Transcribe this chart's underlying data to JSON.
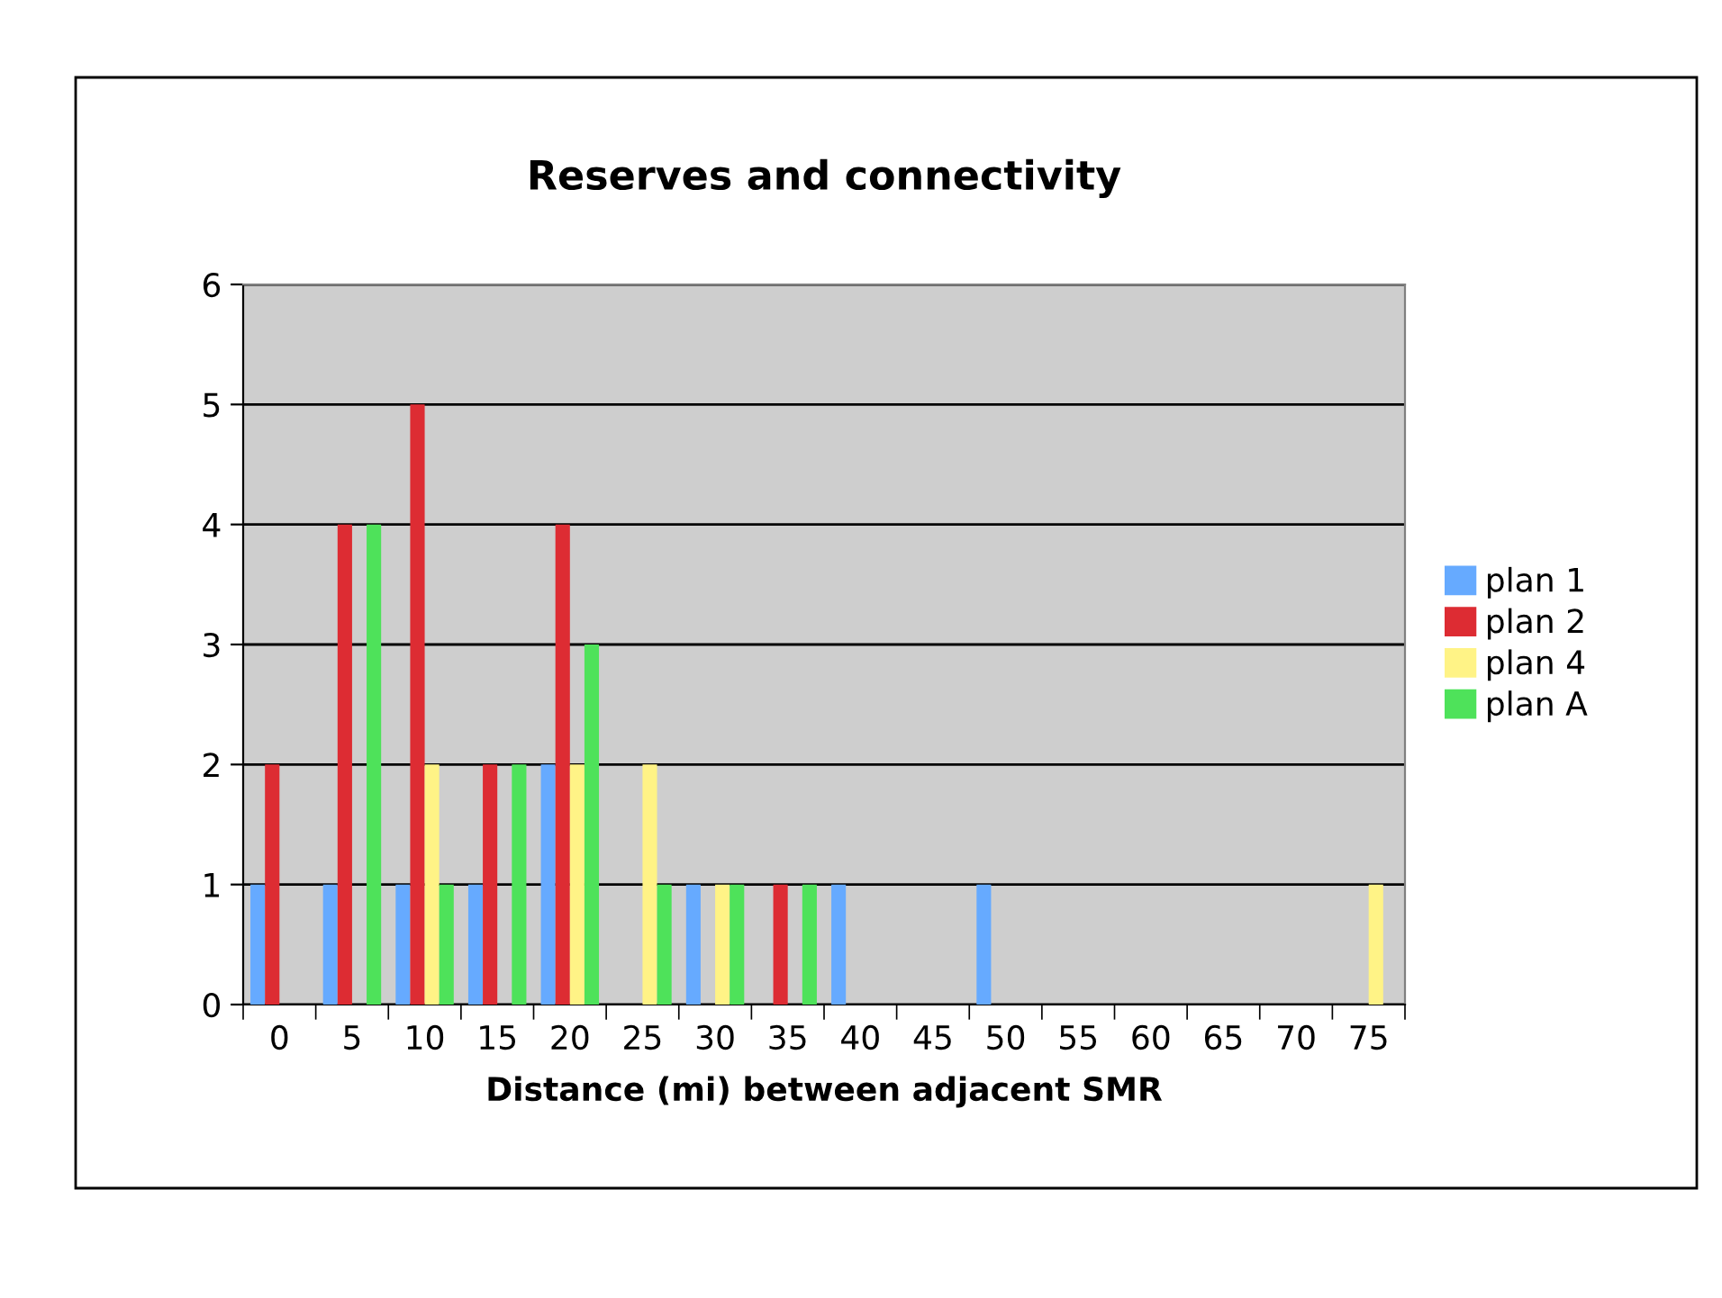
{
  "chart_data": {
    "type": "bar",
    "title": "Reserves and connectivity",
    "xlabel": "Distance (mi) between adjacent SMR",
    "categories": [
      "0",
      "5",
      "10",
      "15",
      "20",
      "25",
      "30",
      "35",
      "40",
      "45",
      "50",
      "55",
      "60",
      "65",
      "70",
      "75"
    ],
    "series": [
      {
        "name": "plan 1",
        "color": "#66aaff",
        "values": [
          1,
          1,
          1,
          1,
          2,
          0,
          1,
          0,
          1,
          0,
          1,
          0,
          0,
          0,
          0,
          0
        ]
      },
      {
        "name": "plan 2",
        "color": "#dd2c33",
        "values": [
          2,
          4,
          5,
          2,
          4,
          0,
          0,
          1,
          0,
          0,
          0,
          0,
          0,
          0,
          0,
          0
        ]
      },
      {
        "name": "plan 4",
        "color": "#fff386",
        "values": [
          0,
          0,
          2,
          0,
          2,
          2,
          1,
          0,
          0,
          0,
          0,
          0,
          0,
          0,
          0,
          1
        ]
      },
      {
        "name": "plan A",
        "color": "#4ee25a",
        "values": [
          0,
          4,
          1,
          2,
          3,
          1,
          1,
          1,
          0,
          0,
          0,
          0,
          0,
          0,
          0,
          0
        ]
      }
    ],
    "ylim": [
      0,
      6
    ],
    "yticks": [
      0,
      1,
      2,
      3,
      4,
      5,
      6
    ],
    "grid": "y",
    "legend": "right"
  }
}
